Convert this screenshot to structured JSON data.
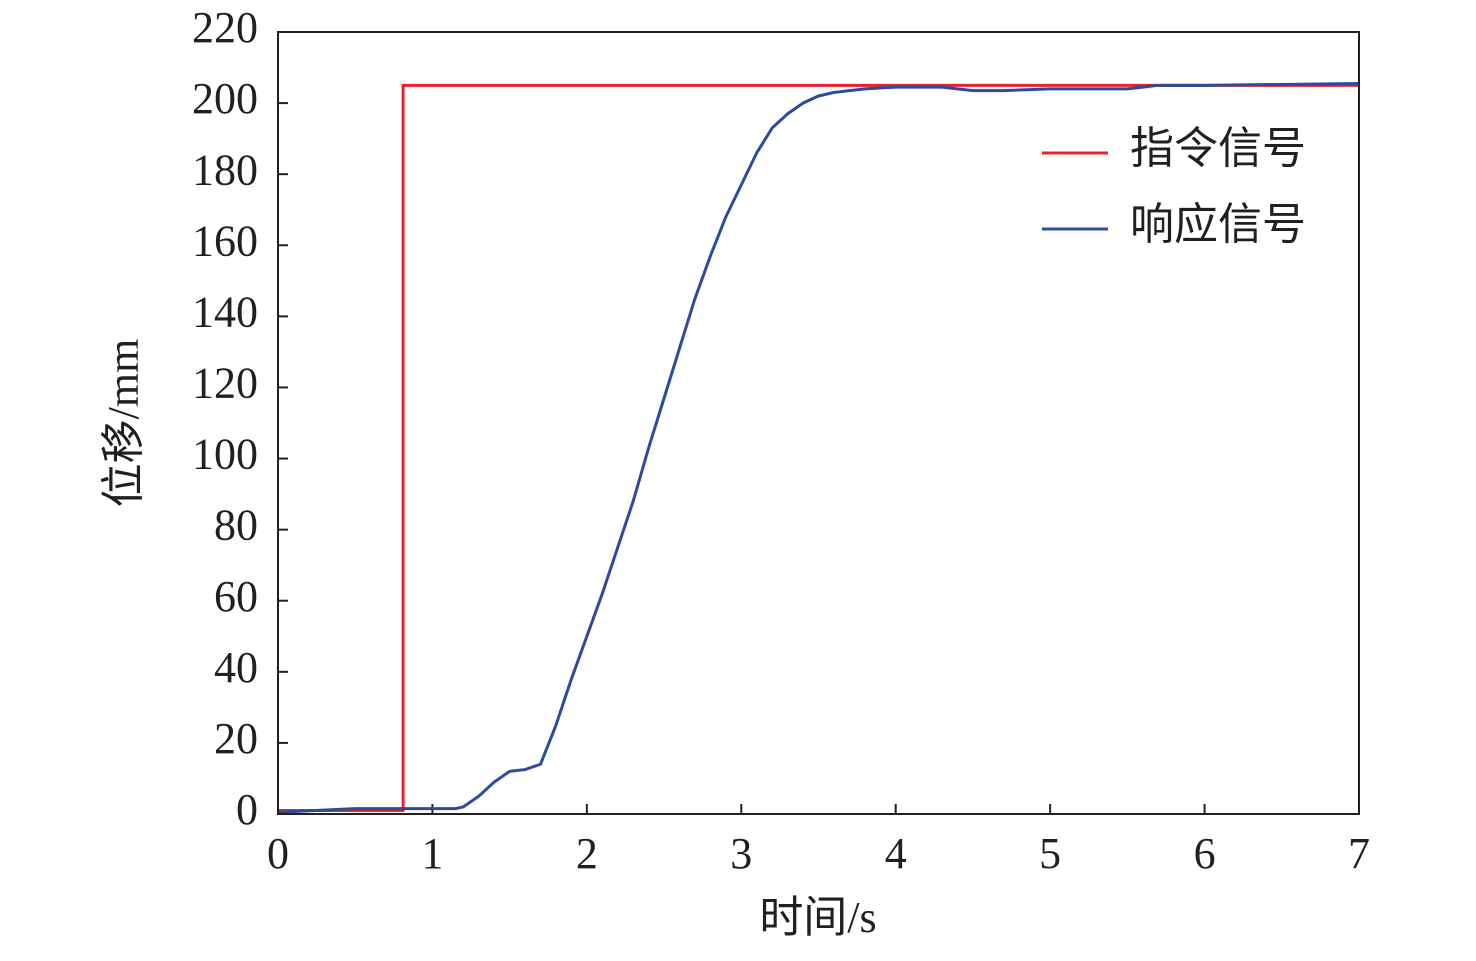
{
  "chart_data": {
    "type": "line",
    "x_label": "时间/s",
    "y_label": "位移/mm",
    "xlim": [
      0,
      7
    ],
    "xticks": [
      0,
      1,
      2,
      3,
      4,
      5,
      6,
      7
    ],
    "ylim": [
      0,
      220
    ],
    "yticks": [
      0,
      20,
      40,
      60,
      80,
      100,
      120,
      140,
      160,
      180,
      200,
      220
    ],
    "legend": "top-right",
    "series": [
      {
        "name": "指令信号",
        "color": "#e8222e",
        "x": [
          0,
          0.81,
          0.81,
          7
        ],
        "values": [
          1,
          1,
          205,
          205
        ]
      },
      {
        "name": "响应信号",
        "color": "#2e4a9e",
        "x": [
          0,
          0.5,
          0.8,
          1.0,
          1.15,
          1.2,
          1.3,
          1.4,
          1.5,
          1.6,
          1.7,
          1.8,
          1.9,
          2.0,
          2.1,
          2.2,
          2.3,
          2.4,
          2.5,
          2.6,
          2.7,
          2.8,
          2.9,
          3.0,
          3.1,
          3.2,
          3.3,
          3.4,
          3.5,
          3.6,
          3.8,
          4.0,
          4.3,
          4.5,
          4.7,
          5.0,
          5.5,
          5.7,
          6.0,
          7.0
        ],
        "values": [
          0.5,
          1.5,
          1.5,
          1.5,
          1.5,
          2,
          5,
          9,
          12,
          12.5,
          14,
          25,
          38,
          50,
          62,
          75,
          88,
          103,
          117,
          131,
          145,
          157,
          168,
          177,
          186,
          193,
          197,
          200,
          202,
          203,
          204,
          204.5,
          204.5,
          203.5,
          203.5,
          204,
          204,
          205,
          205,
          205.5
        ]
      }
    ]
  }
}
